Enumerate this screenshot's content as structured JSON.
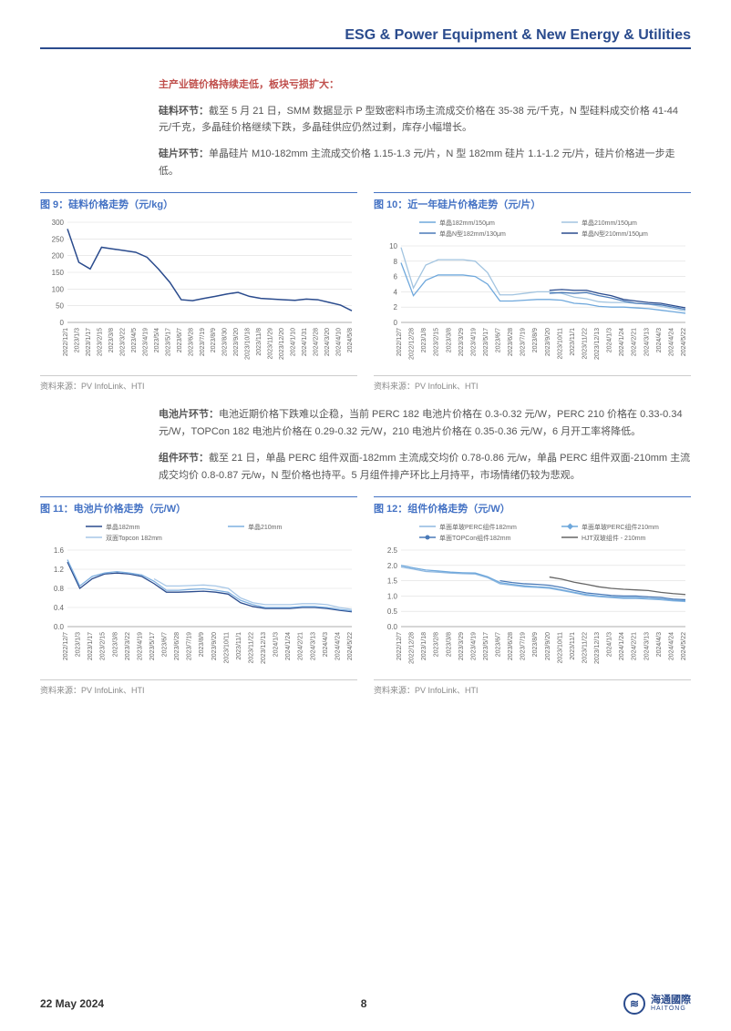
{
  "header": {
    "title": "ESG & Power Equipment & New Energy & Utilities"
  },
  "intro": {
    "red_title": "主产业链价格持续走低，板块亏损扩大：",
    "p1_label": "硅料环节：",
    "p1_text": "截至 5 月 21 日，SMM 数据显示 P 型致密料市场主流成交价格在 35-38 元/千克，N 型硅料成交价格 41-44 元/千克，多晶硅价格继续下跌，多晶硅供应仍然过剩，库存小幅增长。",
    "p2_label": "硅片环节：",
    "p2_text": "单晶硅片 M10-182mm 主流成交价格 1.15-1.3 元/片，N 型 182mm 硅片 1.1-1.2 元/片，硅片价格进一步走低。"
  },
  "mid": {
    "p3_label": "电池片环节：",
    "p3_text": "电池近期价格下跌难以企稳，当前 PERC 182 电池片价格在 0.3-0.32 元/W，PERC 210 价格在 0.33-0.34 元/W，TOPCon 182 电池片价格在 0.29-0.32 元/W，210 电池片价格在 0.35-0.36 元/W，6 月开工率将降低。",
    "p4_label": "组件环节：",
    "p4_text": "截至 21 日，单晶 PERC 组件双面-182mm 主流成交均价 0.78-0.86 元/w，单晶 PERC 组件双面-210mm 主流成交均价 0.8-0.87 元/w，N 型价格也持平。5 月组件排产环比上月持平，市场情绪仍较为悲观。"
  },
  "chart9": {
    "type": "line",
    "title": "图 9：硅料价格走势（元/kg）",
    "source": "资料来源：PV InfoLink、HTI",
    "ylim": [
      0,
      300
    ],
    "ytick_step": 50,
    "xlabels": [
      "2022/12/1",
      "2023/1/3",
      "2023/1/17",
      "2023/2/15",
      "2023/3/8",
      "2023/3/22",
      "2023/4/5",
      "2023/4/19",
      "2023/5/4",
      "2023/5/17",
      "2023/6/7",
      "2023/6/28",
      "2023/7/19",
      "2023/8/9",
      "2023/8/30",
      "2023/9/20",
      "2023/10/18",
      "2023/11/8",
      "2023/11/29",
      "2023/12/20",
      "2024/1/10",
      "2024/1/31",
      "2024/2/28",
      "2024/3/20",
      "2024/4/10",
      "2024/5/8"
    ],
    "series": [
      {
        "name": "硅料",
        "color": "#2a4b8d",
        "width": 1.5,
        "values": [
          280,
          180,
          160,
          225,
          220,
          215,
          210,
          195,
          160,
          120,
          68,
          65,
          72,
          78,
          85,
          90,
          78,
          72,
          70,
          68,
          66,
          70,
          68,
          60,
          52,
          35
        ]
      }
    ],
    "grid_color": "#dddddd",
    "background_color": "#ffffff",
    "label_fontsize": 7
  },
  "chart10": {
    "type": "line",
    "title": "图 10：近一年硅片价格走势（元/片）",
    "source": "资料来源：PV InfoLink、HTI",
    "ylim": [
      0,
      10
    ],
    "ytick_step": 2,
    "xlabels": [
      "2022/12/7",
      "2022/12/28",
      "2023/1/8",
      "2023/2/15",
      "2023/3/8",
      "2023/3/29",
      "2023/4/19",
      "2023/5/17",
      "2023/6/7",
      "2023/6/28",
      "2023/7/19",
      "2023/8/9",
      "2023/9/20",
      "2023/10/11",
      "2023/11/1",
      "2023/11/22",
      "2023/12/13",
      "2024/1/3",
      "2024/1/24",
      "2024/2/21",
      "2024/3/13",
      "2024/4/3",
      "2024/4/24",
      "2024/5/22"
    ],
    "legend_items": [
      {
        "name": "单晶182mm/150μm",
        "color": "#6fa8dc"
      },
      {
        "name": "单晶210mm/150μm",
        "color": "#a2c4e0"
      },
      {
        "name": "单晶N型182mm/130μm",
        "color": "#4a7ab8"
      },
      {
        "name": "单晶N型210mm/150μm",
        "color": "#2a4b8d"
      }
    ],
    "series": [
      {
        "name": "单晶182mm/150μm",
        "color": "#6fa8dc",
        "width": 1.3,
        "values": [
          7.8,
          3.5,
          5.5,
          6.2,
          6.2,
          6.2,
          6.0,
          5.0,
          2.8,
          2.8,
          2.9,
          3.0,
          3.0,
          2.9,
          2.5,
          2.4,
          2.1,
          2.0,
          2.0,
          1.9,
          1.8,
          1.6,
          1.4,
          1.2
        ]
      },
      {
        "name": "单晶210mm/150μm",
        "color": "#a2c4e0",
        "width": 1.3,
        "values": [
          9.8,
          4.5,
          7.5,
          8.2,
          8.2,
          8.2,
          8.0,
          6.5,
          3.6,
          3.6,
          3.8,
          4.0,
          4.0,
          3.8,
          3.3,
          3.1,
          2.7,
          2.6,
          2.6,
          2.5,
          2.4,
          2.1,
          1.8,
          1.5
        ]
      },
      {
        "name": "单晶N型182mm/130μm",
        "color": "#4a7ab8",
        "width": 1.3,
        "start": 12,
        "values": [
          3.8,
          3.9,
          3.8,
          3.9,
          3.5,
          3.2,
          2.8,
          2.5,
          2.4,
          2.3,
          2.0,
          1.7
        ]
      },
      {
        "name": "单晶N型210mm/150μm",
        "color": "#2a4b8d",
        "width": 1.3,
        "start": 12,
        "values": [
          4.2,
          4.3,
          4.2,
          4.2,
          3.8,
          3.5,
          3.0,
          2.8,
          2.6,
          2.5,
          2.2,
          1.9
        ]
      }
    ],
    "grid_color": "#dddddd",
    "background_color": "#ffffff",
    "label_fontsize": 7
  },
  "chart11": {
    "type": "line",
    "title": "图 11：电池片价格走势（元/W）",
    "source": "资料来源：PV InfoLink、HTI",
    "ylim": [
      0,
      1.6
    ],
    "ytick_step": 0.4,
    "xlabels": [
      "2022/12/7",
      "2023/1/3",
      "2023/1/17",
      "2023/2/15",
      "2023/3/8",
      "2023/3/22",
      "2023/4/19",
      "2023/5/17",
      "2023/6/7",
      "2023/6/28",
      "2023/7/19",
      "2023/8/9",
      "2023/9/20",
      "2023/10/11",
      "2023/11/1",
      "2023/11/22",
      "2023/12/13",
      "2024/1/3",
      "2024/1/24",
      "2024/2/21",
      "2024/3/13",
      "2024/4/3",
      "2024/4/24",
      "2024/5/22"
    ],
    "legend_items": [
      {
        "name": "单晶182mm",
        "color": "#2a4b8d"
      },
      {
        "name": "单晶210mm",
        "color": "#7fb0e0"
      },
      {
        "name": "双面Topcon 182mm",
        "color": "#a7c7e7"
      }
    ],
    "series": [
      {
        "name": "单晶182mm",
        "color": "#2a4b8d",
        "width": 1.3,
        "values": [
          1.35,
          0.8,
          1.0,
          1.1,
          1.12,
          1.1,
          1.05,
          0.9,
          0.72,
          0.72,
          0.73,
          0.74,
          0.72,
          0.68,
          0.5,
          0.42,
          0.38,
          0.38,
          0.38,
          0.4,
          0.4,
          0.38,
          0.34,
          0.31
        ]
      },
      {
        "name": "单晶210mm",
        "color": "#7fb0e0",
        "width": 1.3,
        "values": [
          1.4,
          0.85,
          1.05,
          1.12,
          1.15,
          1.12,
          1.08,
          0.95,
          0.76,
          0.76,
          0.78,
          0.79,
          0.76,
          0.72,
          0.55,
          0.46,
          0.4,
          0.4,
          0.4,
          0.42,
          0.42,
          0.4,
          0.36,
          0.33
        ]
      },
      {
        "name": "双面Topcon 182mm",
        "color": "#a7c7e7",
        "width": 1.3,
        "start": 7,
        "values": [
          1.0,
          0.85,
          0.85,
          0.86,
          0.87,
          0.85,
          0.8,
          0.6,
          0.5,
          0.46,
          0.46,
          0.46,
          0.48,
          0.48,
          0.46,
          0.4,
          0.36
        ]
      }
    ],
    "grid_color": "#dddddd",
    "background_color": "#ffffff",
    "label_fontsize": 7
  },
  "chart12": {
    "type": "line",
    "title": "图 12：组件价格走势（元/W）",
    "source": "资料来源：PV InfoLink、HTI",
    "ylim": [
      0,
      2.5
    ],
    "ytick_step": 0.5,
    "xlabels": [
      "2022/12/7",
      "2022/12/28",
      "2023/1/18",
      "2023/2/8",
      "2023/3/8",
      "2023/3/29",
      "2023/4/19",
      "2023/5/17",
      "2023/6/7",
      "2023/6/28",
      "2023/7/19",
      "2023/8/9",
      "2023/9/20",
      "2023/10/11",
      "2023/11/1",
      "2023/11/22",
      "2023/12/13",
      "2024/1/3",
      "2024/1/24",
      "2024/2/21",
      "2024/3/13",
      "2024/4/3",
      "2024/4/24",
      "2024/5/22"
    ],
    "legend_items": [
      {
        "name": "单面单玻PERC组件182mm",
        "color": "#8fb8e0"
      },
      {
        "name": "单面单玻PERC组件210mm",
        "color": "#6fa8dc",
        "marker": "diamond"
      },
      {
        "name": "单面TOPCon组件182mm",
        "color": "#4a7ab8",
        "marker": "circle"
      },
      {
        "name": "HJT双玻组件 - 210mm",
        "color": "#666666"
      }
    ],
    "series": [
      {
        "name": "单面单玻PERC组件182mm",
        "color": "#8fb8e0",
        "width": 1.3,
        "values": [
          1.95,
          1.88,
          1.8,
          1.78,
          1.75,
          1.73,
          1.72,
          1.6,
          1.4,
          1.35,
          1.3,
          1.28,
          1.25,
          1.18,
          1.1,
          1.02,
          0.98,
          0.95,
          0.92,
          0.92,
          0.9,
          0.88,
          0.84,
          0.82
        ]
      },
      {
        "name": "单面单玻PERC组件210mm",
        "color": "#6fa8dc",
        "width": 1.3,
        "values": [
          2.0,
          1.92,
          1.85,
          1.82,
          1.78,
          1.76,
          1.75,
          1.63,
          1.44,
          1.38,
          1.33,
          1.3,
          1.28,
          1.2,
          1.12,
          1.05,
          1.0,
          0.97,
          0.95,
          0.95,
          0.92,
          0.9,
          0.86,
          0.84
        ]
      },
      {
        "name": "单面TOPCon组件182mm",
        "color": "#4a7ab8",
        "width": 1.3,
        "start": 8,
        "values": [
          1.5,
          1.44,
          1.4,
          1.38,
          1.35,
          1.28,
          1.18,
          1.1,
          1.06,
          1.02,
          1.0,
          1.0,
          0.97,
          0.95,
          0.9,
          0.88
        ]
      },
      {
        "name": "HJT双玻组件 - 210mm",
        "color": "#666666",
        "width": 1.3,
        "start": 12,
        "values": [
          1.62,
          1.55,
          1.45,
          1.38,
          1.3,
          1.25,
          1.22,
          1.2,
          1.18,
          1.12,
          1.08,
          1.05
        ]
      }
    ],
    "grid_color": "#dddddd",
    "background_color": "#ffffff",
    "label_fontsize": 7
  },
  "footer": {
    "date": "22 May 2024",
    "page": "8",
    "brand": "海通國際",
    "brand_en": "HAITONG"
  }
}
